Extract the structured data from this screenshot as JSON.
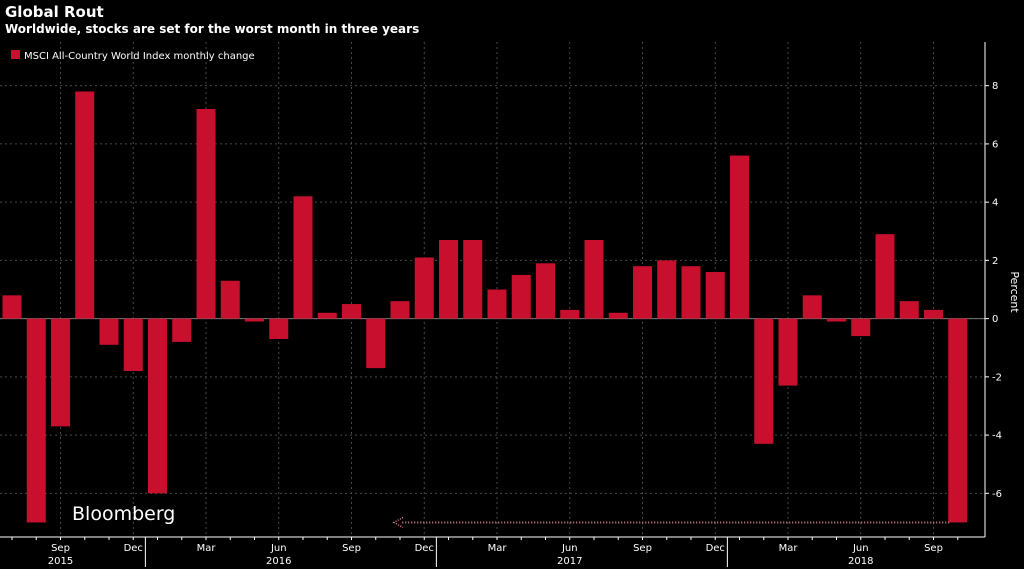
{
  "header": {
    "title": "Global Rout",
    "subtitle": "Worldwide, stocks are set for the worst month in three years"
  },
  "branding": {
    "logo": "Bloomberg"
  },
  "colors": {
    "bar": "#c8102e",
    "background": "#000000",
    "grid": "#4a4a4a",
    "annotation": "#e8858f"
  },
  "chart_data": {
    "type": "bar",
    "title": "Global Rout",
    "subtitle": "Worldwide, stocks are set for the worst month in three years",
    "ylabel": "Percent",
    "ylim": [
      -7.5,
      9.5
    ],
    "yticks": [
      -6,
      -4,
      -2,
      0,
      2,
      4,
      6,
      8
    ],
    "legend": {
      "label": "MSCI All-Country World Index monthly change",
      "position": "top-left"
    },
    "y_axis_position": "right",
    "grid": true,
    "x": [
      "2015-07",
      "2015-08",
      "2015-09",
      "2015-10",
      "2015-11",
      "2015-12",
      "2016-01",
      "2016-02",
      "2016-03",
      "2016-04",
      "2016-05",
      "2016-06",
      "2016-07",
      "2016-08",
      "2016-09",
      "2016-10",
      "2016-11",
      "2016-12",
      "2017-01",
      "2017-02",
      "2017-03",
      "2017-04",
      "2017-05",
      "2017-06",
      "2017-07",
      "2017-08",
      "2017-09",
      "2017-10",
      "2017-11",
      "2017-12",
      "2018-01",
      "2018-02",
      "2018-03",
      "2018-04",
      "2018-05",
      "2018-06",
      "2018-07",
      "2018-08",
      "2018-09",
      "2018-10"
    ],
    "series": [
      {
        "name": "MSCI All-Country World Index monthly change",
        "values": [
          0.8,
          -7.0,
          -3.7,
          7.8,
          -0.9,
          -1.8,
          -6.0,
          -0.8,
          7.2,
          1.3,
          -0.1,
          -0.7,
          4.2,
          0.2,
          0.5,
          -1.7,
          0.6,
          2.1,
          2.7,
          2.7,
          1.0,
          1.5,
          1.9,
          0.3,
          2.7,
          0.2,
          1.8,
          2.0,
          1.8,
          1.6,
          5.6,
          -4.3,
          -2.3,
          0.8,
          -0.1,
          -0.6,
          2.9,
          0.6,
          0.3,
          -7.0
        ]
      }
    ],
    "x_tick_labels": [
      {
        "month": "2015-09",
        "label": "Sep"
      },
      {
        "month": "2015-12",
        "label": "Dec"
      },
      {
        "month": "2016-03",
        "label": "Mar"
      },
      {
        "month": "2016-06",
        "label": "Jun"
      },
      {
        "month": "2016-09",
        "label": "Sep"
      },
      {
        "month": "2016-12",
        "label": "Dec"
      },
      {
        "month": "2017-03",
        "label": "Mar"
      },
      {
        "month": "2017-06",
        "label": "Jun"
      },
      {
        "month": "2017-09",
        "label": "Sep"
      },
      {
        "month": "2017-12",
        "label": "Dec"
      },
      {
        "month": "2018-03",
        "label": "Mar"
      },
      {
        "month": "2018-06",
        "label": "Jun"
      },
      {
        "month": "2018-09",
        "label": "Sep"
      }
    ],
    "year_labels": [
      {
        "month": "2015-09",
        "label": "2015"
      },
      {
        "month": "2016-06",
        "label": "2016"
      },
      {
        "month": "2017-06",
        "label": "2017"
      },
      {
        "month": "2018-06",
        "label": "2018"
      }
    ],
    "annotation": {
      "type": "dotted-arrow",
      "from": "2018-10",
      "to": "2016-11",
      "y": -7.0
    }
  }
}
